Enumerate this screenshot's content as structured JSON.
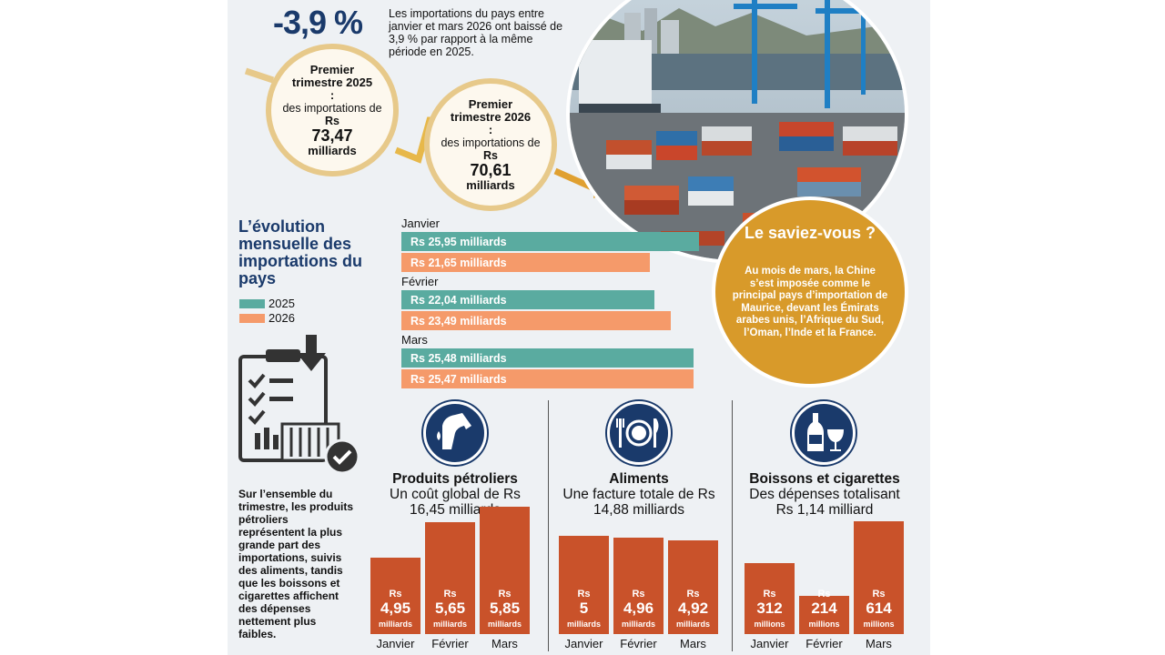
{
  "headline": {
    "value": "-3,9 %",
    "text": "Les importations du pays entre janvier et mars 2026 ont baissé de 3,9 % par rapport à la même période en 2025."
  },
  "q2025": {
    "title": "Premier trimestre 2025 :",
    "sub": "des importations de",
    "rs": "Rs",
    "value": "73,47",
    "unit": "milliards"
  },
  "q2026": {
    "title": "Premier trimestre 2026 :",
    "sub": "des importations de",
    "rs": "Rs",
    "value": "70,61",
    "unit": "milliards"
  },
  "evolution_title": "L’évolution mensuelle des importations du pays",
  "did_you_know": {
    "title": "Le saviez-vous ?",
    "body": "Au mois de mars, la Chine s’est imposée comme le principal pays d’importation de Maurice, devant les Émirats arabes unis, l’Afrique du Sud, l’Oman, l’Inde et la France."
  },
  "summary_text": "Sur l’ensemble du trimestre, les produits pétroliers représentent la plus grande part des importations, suivis des aliments, tandis que les boissons et cigarettes affichent des dépenses nettement plus faibles.",
  "colors": {
    "series2025": "#5aaba0",
    "series2026": "#f59a6a",
    "navy": "#1a3a6b",
    "bar": "#c9522a",
    "saviez": "#d89a2a"
  },
  "chart_data": [
    {
      "type": "bar",
      "orientation": "horizontal",
      "title": "L’évolution mensuelle des importations du pays",
      "categories": [
        "Janvier",
        "Février",
        "Mars"
      ],
      "series": [
        {
          "name": "2025",
          "values": [
            25.95,
            22.04,
            25.48
          ],
          "labels": [
            "Rs 25,95 milliards",
            "Rs 22,04 milliards",
            "Rs 25,48 milliards"
          ]
        },
        {
          "name": "2026",
          "values": [
            21.65,
            23.49,
            25.47
          ],
          "labels": [
            "Rs 21,65 milliards",
            "Rs 23,49 milliards",
            "Rs 25,47 milliards"
          ]
        }
      ],
      "legend": "left"
    },
    {
      "type": "bar",
      "title": "Produits pétroliers",
      "subtitle": "Un coût global de Rs 16,45 milliards",
      "icon": "fuel-pump-icon",
      "categories": [
        "Janvier",
        "Février",
        "Mars"
      ],
      "values": [
        4.95,
        5.65,
        5.85
      ],
      "value_labels": [
        "4,95",
        "5,65",
        "5,85"
      ],
      "unit_prefix": "Rs",
      "unit": "milliards"
    },
    {
      "type": "bar",
      "title": "Aliments",
      "subtitle": "Une facture totale de Rs 14,88 milliards",
      "icon": "plate-cutlery-icon",
      "categories": [
        "Janvier",
        "Février",
        "Mars"
      ],
      "values": [
        5,
        4.96,
        4.92
      ],
      "value_labels": [
        "5",
        "4,96",
        "4,92"
      ],
      "unit_prefix": "Rs",
      "unit": "milliards"
    },
    {
      "type": "bar",
      "title": "Boissons et cigarettes",
      "subtitle": "Des dépenses totalisant Rs 1,14 milliard",
      "icon": "bottle-glass-icon",
      "categories": [
        "Janvier",
        "Février",
        "Mars"
      ],
      "values": [
        312,
        214,
        614
      ],
      "value_labels": [
        "312",
        "214",
        "614"
      ],
      "unit_prefix": "Rs",
      "unit": "millions"
    }
  ]
}
